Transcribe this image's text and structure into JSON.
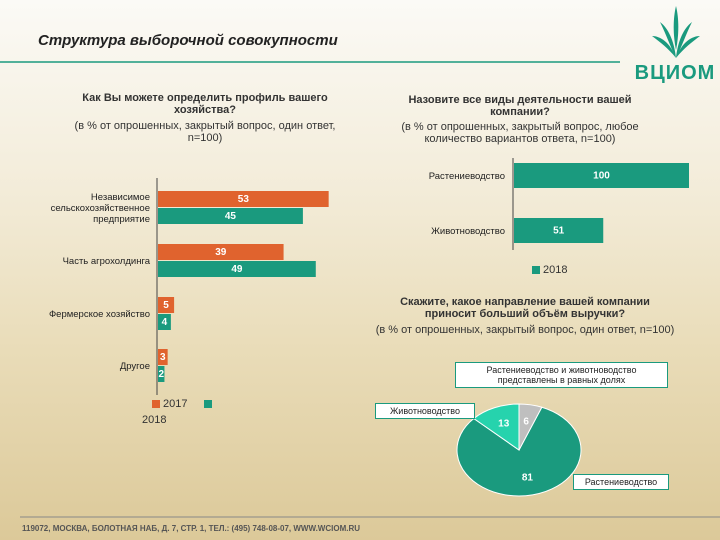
{
  "header": {
    "title": "Структура выборочной совокупности",
    "logo": "ВЦИОМ"
  },
  "footer": "119072, МОСКВА, БОЛОТНАЯ НАБ, Д. 7, СТР. 1, ТЕЛ.: (495) 748-08-07, WWW.WCIOM.RU",
  "chart_data": [
    {
      "type": "hbar",
      "title": "Как Вы можете определить  профиль вашего хозяйства?",
      "subtitle": "(в % от опрошенных, закрытый вопрос, один ответ, n=100)",
      "categories": [
        "Независимое сельскохозяйственное предприятие",
        "Часть агрохолдинга",
        "Фермерское хозяйство",
        "Другое"
      ],
      "series": [
        {
          "name": "2017",
          "color": "#e0632e",
          "values": [
            53,
            39,
            5,
            3
          ]
        },
        {
          "name": "2018",
          "color": "#1a9a7e",
          "values": [
            45,
            49,
            4,
            2
          ]
        }
      ]
    },
    {
      "type": "hbar",
      "title": "Назовите все виды деятельности вашей компании?",
      "subtitle": "(в % от опрошенных, закрытый вопрос, любое количество вариантов ответа, n=100)",
      "categories": [
        "Растениеводство",
        "Животноводство"
      ],
      "series": [
        {
          "name": "2018",
          "color": "#1a9a7e",
          "values": [
            100,
            51
          ]
        }
      ]
    },
    {
      "type": "pie",
      "title": "Скажите, какое направление вашей компании приносит больший объём выручки?",
      "subtitle": "(в % от опрошенных, закрытый вопрос, один ответ, n=100)",
      "categories": [
        "Растениеводство",
        "Животноводство",
        "Растениеводство и животноводство представлены в равных долях"
      ],
      "values": [
        81,
        13,
        6
      ],
      "colors": [
        "#1a9a7e",
        "#26d3ad",
        "#bfbfbf"
      ]
    }
  ]
}
